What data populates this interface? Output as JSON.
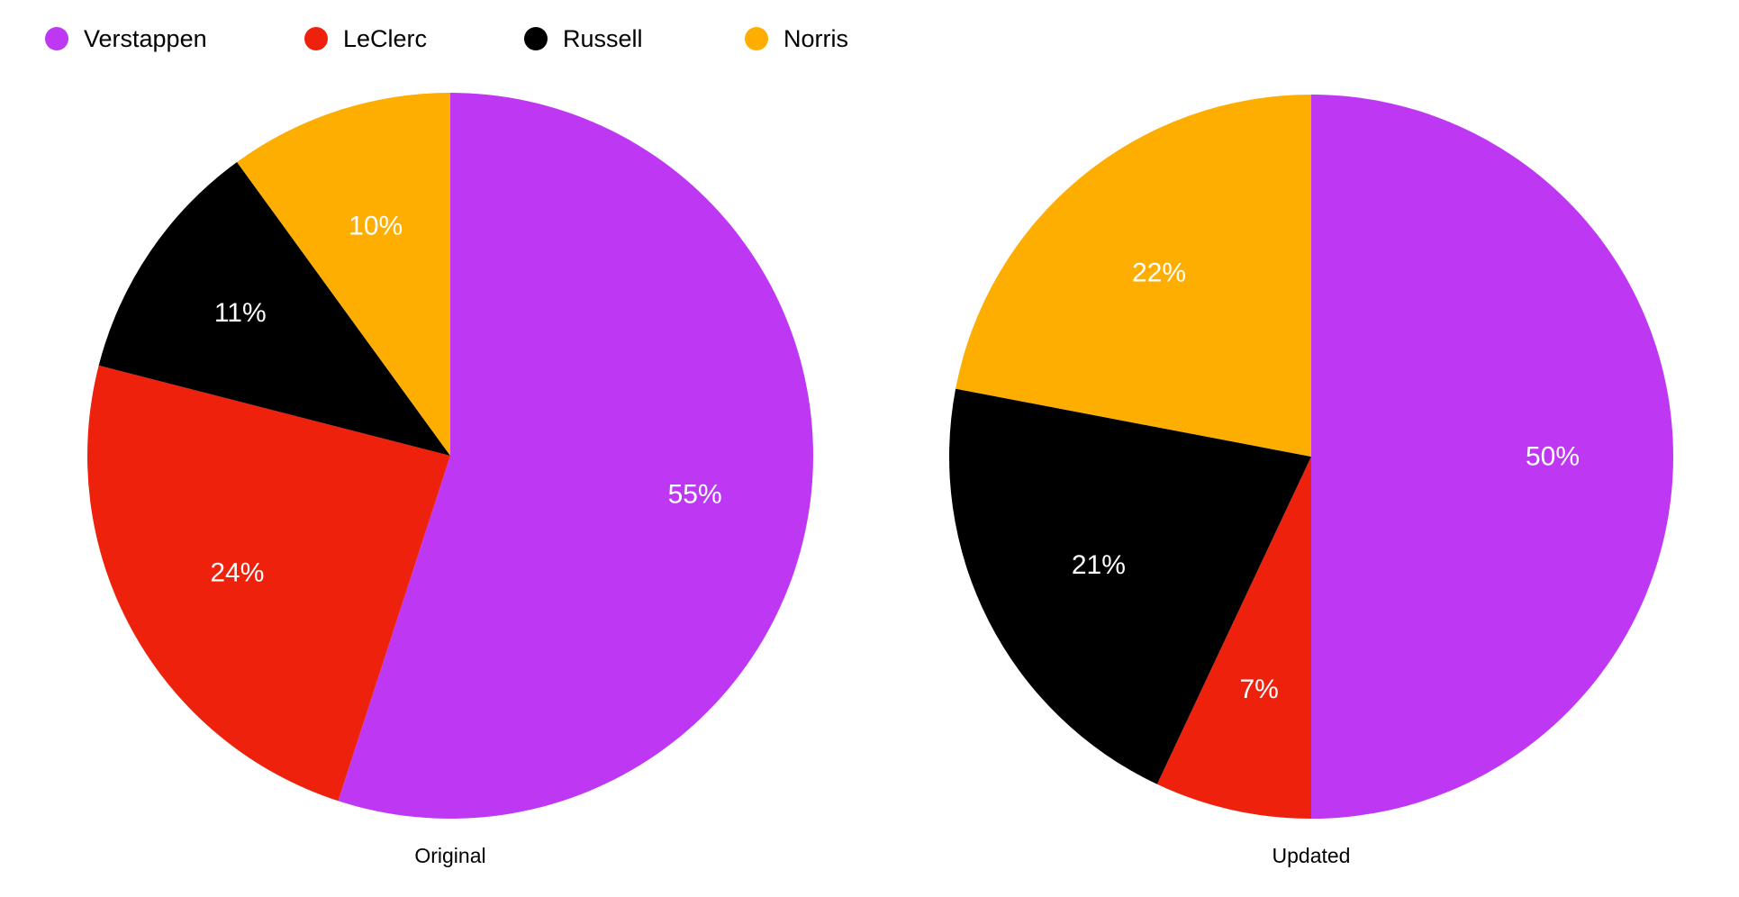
{
  "legend": {
    "entries": [
      {
        "label": "Verstappen",
        "color": "#BE38F3"
      },
      {
        "label": "LeClerc",
        "color": "#EE220C"
      },
      {
        "label": "Russell",
        "color": "#000000"
      },
      {
        "label": "Norris",
        "color": "#FEAE00"
      }
    ],
    "placement": "top-left"
  },
  "chart_data": [
    {
      "type": "pie",
      "title": "Original",
      "categories": [
        "Verstappen",
        "LeClerc",
        "Russell",
        "Norris"
      ],
      "values": [
        55,
        24,
        11,
        10
      ],
      "labels": [
        "55%",
        "24%",
        "11%",
        "10%"
      ],
      "colors": [
        "#BE38F3",
        "#EE220C",
        "#000000",
        "#FEAE00"
      ]
    },
    {
      "type": "pie",
      "title": "Updated",
      "categories": [
        "Verstappen",
        "LeClerc",
        "Russell",
        "Norris"
      ],
      "values": [
        50,
        7,
        21,
        22
      ],
      "labels": [
        "50%",
        "7%",
        "21%",
        "22%"
      ],
      "colors": [
        "#BE38F3",
        "#EE220C",
        "#000000",
        "#FEAE00"
      ]
    }
  ]
}
